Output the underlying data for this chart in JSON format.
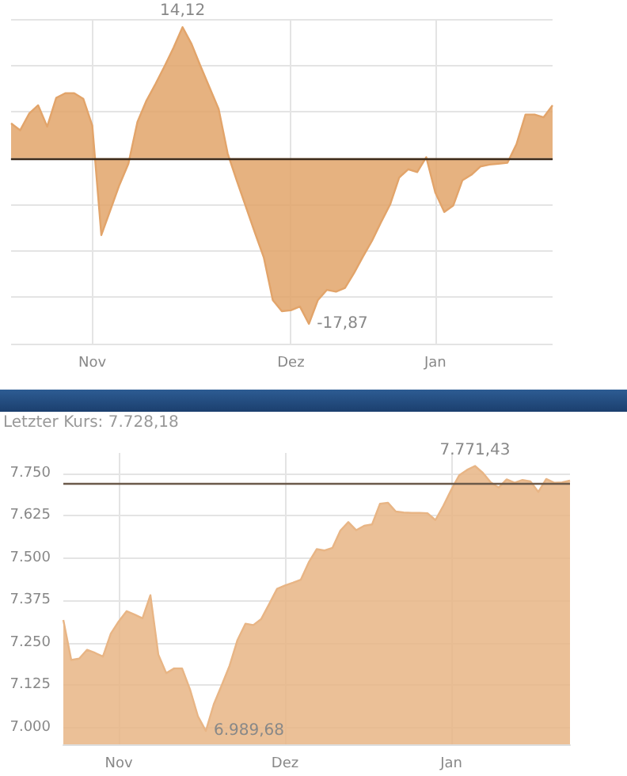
{
  "chart_data": [
    {
      "type": "area",
      "categories": [
        null,
        null,
        null,
        null,
        null,
        null,
        null,
        null,
        null,
        "Nov",
        null,
        null,
        null,
        null,
        null,
        null,
        null,
        null,
        null,
        null,
        null,
        null,
        null,
        null,
        null,
        null,
        null,
        null,
        null,
        null,
        null,
        "Dez",
        null,
        null,
        null,
        null,
        null,
        null,
        null,
        null,
        null,
        null,
        null,
        null,
        null,
        null,
        null,
        "Jan",
        null,
        null,
        null,
        null,
        null,
        null,
        null,
        null,
        null,
        null,
        null,
        null,
        null
      ],
      "series": [
        {
          "color": "#e2a46a",
          "values": [
            3.75,
            3.0,
            4.8,
            5.7,
            3.4,
            6.5,
            7.0,
            7.0,
            6.4,
            3.5,
            -8.3,
            -5.6,
            -2.9,
            -0.6,
            3.9,
            6.2,
            8.0,
            9.9,
            11.9,
            14.12,
            12.3,
            9.9,
            7.6,
            5.3,
            0.5,
            -2.4,
            -5.2,
            -8.0,
            -10.7,
            -15.3,
            -16.5,
            -16.4,
            -16.0,
            -17.87,
            -15.3,
            -14.2,
            -14.4,
            -14.0,
            -12.4,
            -10.6,
            -8.9,
            -6.9,
            -5.0,
            -2.1,
            -1.2,
            -1.5,
            0.1,
            -3.7,
            -5.8,
            -5.1,
            -2.4,
            -1.8,
            -0.9,
            -0.7,
            -0.6,
            -0.5,
            1.5,
            4.7,
            4.7,
            4.4,
            5.7
          ],
          "value_labels": [
            null,
            null,
            null,
            null,
            null,
            null,
            null,
            null,
            null,
            null,
            null,
            null,
            null,
            null,
            null,
            null,
            null,
            null,
            null,
            "14,12",
            null,
            null,
            null,
            null,
            null,
            null,
            null,
            null,
            null,
            null,
            null,
            null,
            null,
            "-17,87",
            null,
            null,
            null,
            null,
            null,
            null,
            null,
            null,
            null,
            null,
            null,
            null,
            null,
            null,
            null,
            null,
            null,
            null,
            null,
            null,
            null,
            null,
            null,
            null,
            null,
            null,
            null
          ]
        }
      ],
      "ylim": [
        -20,
        15
      ],
      "yticks": [
        {
          "value": -20,
          "label": null
        },
        {
          "value": -15,
          "label": null
        },
        {
          "value": -10,
          "label": null
        },
        {
          "value": -5,
          "label": null
        },
        {
          "value": 0,
          "label": null
        },
        {
          "value": 5,
          "label": null
        },
        {
          "value": 10,
          "label": null
        },
        {
          "value": 15,
          "label": null
        }
      ],
      "ref_lines": [
        {
          "axis": "y",
          "value": 0,
          "color": "#3b2b1c"
        }
      ],
      "grid": true,
      "tick_labels": "x",
      "marker": "none"
    },
    {
      "type": "area",
      "subtitle": "Letzter Kurs: 7.728,18",
      "categories": [
        null,
        null,
        null,
        null,
        null,
        null,
        null,
        "Nov",
        null,
        null,
        null,
        null,
        null,
        null,
        null,
        null,
        null,
        null,
        null,
        null,
        null,
        null,
        null,
        null,
        null,
        null,
        null,
        null,
        "Dez",
        null,
        null,
        null,
        null,
        null,
        null,
        null,
        null,
        null,
        null,
        null,
        null,
        null,
        null,
        null,
        null,
        null,
        null,
        null,
        null,
        "Jan",
        null,
        null,
        null,
        null,
        null,
        null,
        null,
        null,
        null,
        null,
        null,
        null,
        null,
        null,
        null
      ],
      "series": [
        {
          "color": "#e8b585",
          "values": [
            7317,
            7199,
            7203,
            7229,
            7220,
            7209,
            7277,
            7313,
            7343,
            7333,
            7322,
            7390,
            7215,
            7160,
            7174,
            7174,
            7112,
            7033,
            6989.68,
            7068,
            7124,
            7182,
            7258,
            7306,
            7302,
            7320,
            7364,
            7409,
            7419,
            7427,
            7436,
            7487,
            7526,
            7522,
            7530,
            7581,
            7606,
            7582,
            7595,
            7599,
            7660,
            7663,
            7637,
            7634,
            7633,
            7633,
            7632,
            7612,
            7654,
            7701,
            7744,
            7760,
            7771.43,
            7751,
            7723,
            7708,
            7732,
            7722,
            7730,
            7726,
            7695,
            7733,
            7722,
            7723,
            7728.18
          ],
          "value_labels": [
            null,
            null,
            null,
            null,
            null,
            null,
            null,
            null,
            null,
            null,
            null,
            null,
            null,
            null,
            null,
            null,
            null,
            null,
            "6.989,68",
            null,
            null,
            null,
            null,
            null,
            null,
            null,
            null,
            null,
            null,
            null,
            null,
            null,
            null,
            null,
            null,
            null,
            null,
            null,
            null,
            null,
            null,
            null,
            null,
            null,
            null,
            null,
            null,
            null,
            null,
            null,
            null,
            null,
            "7.771,43",
            null,
            null,
            null,
            null,
            null,
            null,
            null,
            null,
            null,
            null,
            null,
            null
          ]
        }
      ],
      "ylim": [
        6950,
        7810
      ],
      "yticks": [
        {
          "value": 7000,
          "label": "7.000"
        },
        {
          "value": 7125,
          "label": "7.125"
        },
        {
          "value": 7250,
          "label": "7.250"
        },
        {
          "value": 7375,
          "label": "7.375"
        },
        {
          "value": 7500,
          "label": "7.500"
        },
        {
          "value": 7625,
          "label": "7.625"
        },
        {
          "value": 7750,
          "label": "7.750"
        }
      ],
      "ref_lines": [
        {
          "axis": "y",
          "value": 7718,
          "color": "#6b5a4a"
        }
      ],
      "grid": true,
      "marker": "none"
    }
  ]
}
